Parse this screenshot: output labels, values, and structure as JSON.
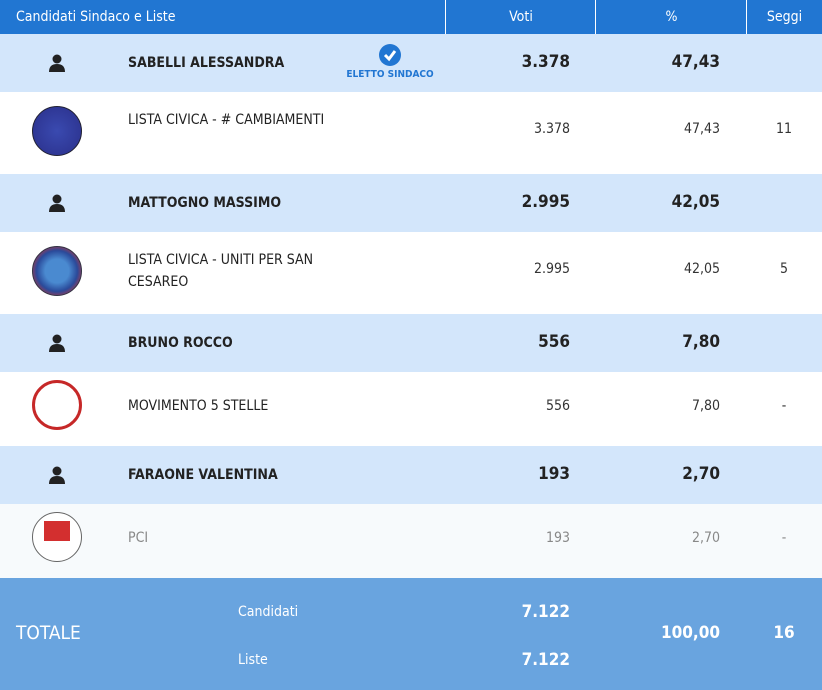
{
  "header": {
    "col_name": "Candidati Sindaco e Liste",
    "col_voti": "Voti",
    "col_pct": "%",
    "col_seggi": "Seggi"
  },
  "elected_label": "ELETTO SINDACO",
  "rows": [
    {
      "candidate": "SABELLI ALESSANDRA",
      "voti": "3.378",
      "pct": "47,43",
      "elected": true,
      "list": {
        "name": "LISTA CIVICA - # CAMBIAMENTI",
        "voti": "3.378",
        "pct": "47,43",
        "seggi": "11"
      }
    },
    {
      "candidate": "MATTOGNO MASSIMO",
      "voti": "2.995",
      "pct": "42,05",
      "list": {
        "name": "LISTA CIVICA - UNITI PER SAN CESAREO",
        "voti": "2.995",
        "pct": "42,05",
        "seggi": "5"
      }
    },
    {
      "candidate": "BRUNO ROCCO",
      "voti": "556",
      "pct": "7,80",
      "list": {
        "name": "MOVIMENTO 5 STELLE",
        "voti": "556",
        "pct": "7,80",
        "seggi": "-"
      }
    },
    {
      "candidate": "FARAONE VALENTINA",
      "voti": "193",
      "pct": "2,70",
      "list": {
        "name": "PCI",
        "voti": "193",
        "pct": "2,70",
        "seggi": "-"
      }
    }
  ],
  "totals": {
    "label": "TOTALE",
    "candidati_label": "Candidati",
    "candidati_voti": "7.122",
    "liste_label": "Liste",
    "liste_voti": "7.122",
    "pct": "100,00",
    "seggi": "16"
  },
  "colors": {
    "header": "#2176d2",
    "candidate_row": "#d3e6fb",
    "total": "#69a4df"
  }
}
